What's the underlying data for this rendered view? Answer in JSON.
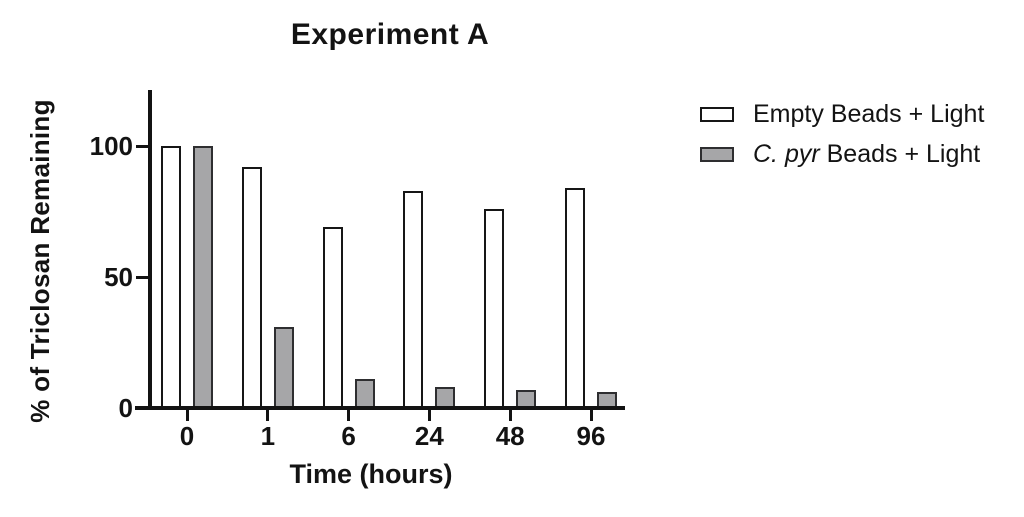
{
  "chart_data": {
    "type": "bar",
    "title": "Experiment A",
    "xlabel": "Time (hours)",
    "ylabel": "% of Triclosan Remaining",
    "categories": [
      "0",
      "1",
      "6",
      "24",
      "48",
      "96"
    ],
    "series": [
      {
        "name": "Empty Beads + Light",
        "color": "#ffffff",
        "values": [
          100,
          92,
          69,
          83,
          76,
          84
        ]
      },
      {
        "name": "C. pyr Beads + Light",
        "color": "#a6a6a8",
        "values": [
          100,
          31,
          11,
          8,
          7,
          6
        ]
      }
    ],
    "yticks": [
      0,
      50,
      100
    ],
    "ylim": [
      0,
      120
    ],
    "grid": false,
    "legend_position": "right"
  },
  "legend": {
    "entries": [
      {
        "parts": [
          {
            "text": "Empty Beads + Light",
            "italic": false
          }
        ],
        "swatch": "white"
      },
      {
        "parts": [
          {
            "text": "C. pyr",
            "italic": true
          },
          {
            "text": " Beads + Light",
            "italic": false
          }
        ],
        "swatch": "gray"
      }
    ]
  },
  "colors": {
    "axis": "#131313",
    "text": "#131313",
    "empty_beads_fill": "#ffffff",
    "empty_beads_border": "#161616",
    "cpyr_beads_fill": "#a6a6a8",
    "cpyr_beads_border": "#2e2e30"
  }
}
